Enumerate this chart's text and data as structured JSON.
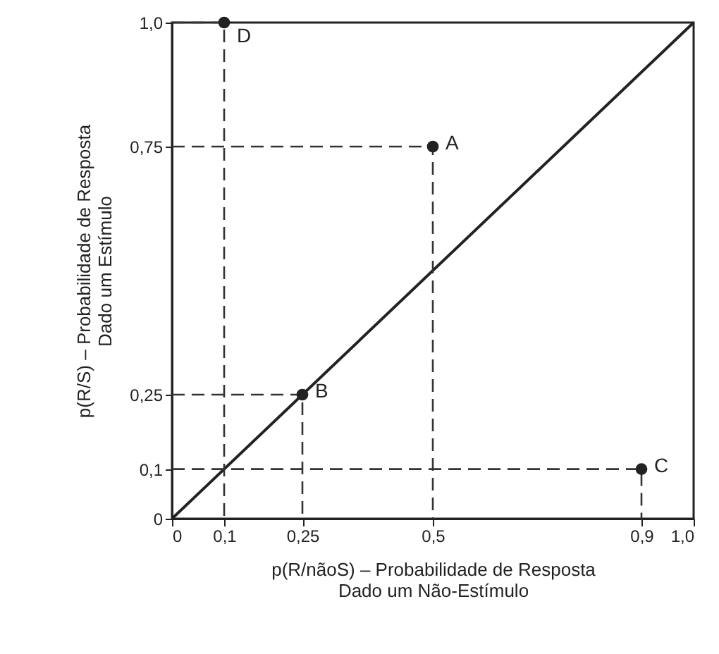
{
  "chart_data": {
    "type": "scatter",
    "xlabel": "p(R/nãoS) – Probabilidade de Resposta\nDado um Não-Estímulo",
    "ylabel": "p(R/S) – Probabilidade de Resposta\nDado um Estímulo",
    "xlim": [
      0,
      1
    ],
    "ylim": [
      0,
      1
    ],
    "xticks": [
      0,
      {
        "value": 0.1,
        "label": "0,1"
      },
      {
        "value": 0.25,
        "label": "0,25"
      },
      {
        "value": 0.5,
        "label": "0,5"
      },
      {
        "value": 0.9,
        "label": "0,9"
      },
      {
        "value": 1,
        "label": "1,0"
      }
    ],
    "yticks": [
      0,
      {
        "value": 0.1,
        "label": "0,1"
      },
      {
        "value": 0.25,
        "label": "0,25"
      },
      {
        "value": 0.75,
        "label": "0,75"
      },
      {
        "value": 1,
        "label": "1,0"
      }
    ],
    "grid": false,
    "series": [
      {
        "type": "line",
        "color": "#222222",
        "line_style": "solid",
        "x": [
          0,
          1
        ],
        "values": [
          0,
          1
        ]
      },
      {
        "type": "line",
        "color": "#333333",
        "line_style": "dashed",
        "x": [
          0,
          0.5,
          0.5
        ],
        "values": [
          0.75,
          0.75,
          0
        ]
      },
      {
        "type": "line",
        "color": "#333333",
        "line_style": "dashed",
        "x": [
          0,
          0.25,
          0.25
        ],
        "values": [
          0.25,
          0.25,
          0
        ]
      },
      {
        "type": "line",
        "color": "#333333",
        "line_style": "dashed",
        "x": [
          0,
          0.9,
          0.9
        ],
        "values": [
          0.1,
          0.1,
          0
        ]
      },
      {
        "type": "line",
        "color": "#333333",
        "line_style": "dashed",
        "x": [
          0,
          0.1,
          0.1
        ],
        "values": [
          1,
          1,
          0
        ]
      },
      {
        "type": "scatter",
        "color": "#222222",
        "marker": "circle",
        "x": [
          0.5,
          0.25,
          0.9,
          0.1
        ],
        "values": [
          0.75,
          0.25,
          0.1,
          1
        ]
      }
    ],
    "annotations": [
      {
        "text": "A",
        "x": 0.5,
        "y": 0.75
      },
      {
        "text": "B",
        "x": 0.25,
        "y": 0.25
      },
      {
        "text": "C",
        "x": 0.9,
        "y": 0.1
      },
      {
        "text": "D",
        "x": 0.1,
        "y": 1
      }
    ]
  }
}
